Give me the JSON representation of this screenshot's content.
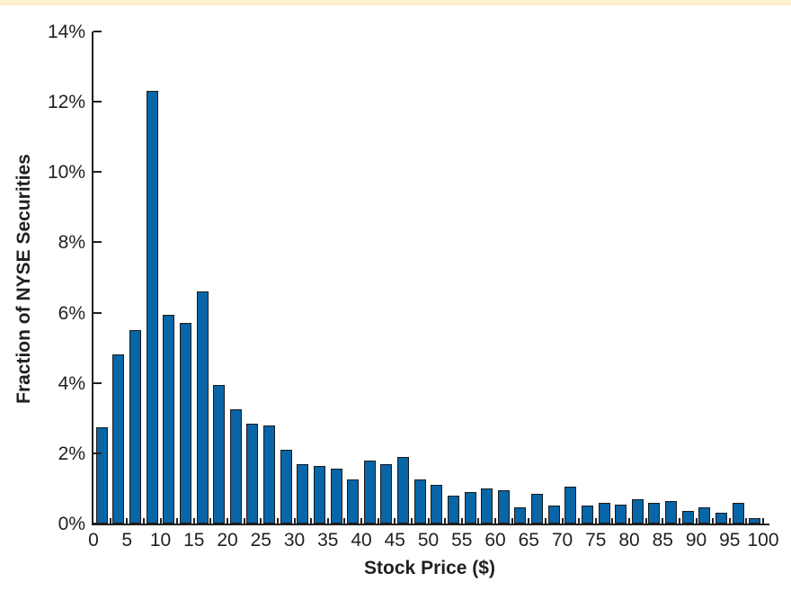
{
  "page": {
    "top_band_color": "#fcf0cd",
    "background_color": "#ffffff"
  },
  "chart_data": {
    "type": "bar",
    "title": "",
    "xlabel": "Stock Price ($)",
    "ylabel": "Fraction of NYSE Securities",
    "bin_start": 0,
    "bin_width": 2.5,
    "values_percent": [
      2.75,
      4.8,
      5.5,
      12.3,
      5.95,
      5.7,
      6.6,
      3.95,
      3.25,
      2.85,
      2.8,
      2.1,
      1.7,
      1.65,
      1.55,
      1.25,
      1.8,
      1.7,
      1.9,
      1.25,
      1.1,
      0.8,
      0.9,
      1.0,
      0.95,
      0.45,
      0.85,
      0.5,
      1.05,
      0.5,
      0.6,
      0.55,
      0.7,
      0.6,
      0.65,
      0.35,
      0.45,
      0.3,
      0.6,
      0.15
    ],
    "bin_ranges": [
      "0-2.5",
      "2.5-5",
      "5-7.5",
      "7.5-10",
      "10-12.5",
      "12.5-15",
      "15-17.5",
      "17.5-20",
      "20-22.5",
      "22.5-25",
      "25-27.5",
      "27.5-30",
      "30-32.5",
      "32.5-35",
      "35-37.5",
      "37.5-40",
      "40-42.5",
      "42.5-45",
      "45-47.5",
      "47.5-50",
      "50-52.5",
      "52.5-55",
      "55-57.5",
      "57.5-60",
      "60-62.5",
      "62.5-65",
      "65-67.5",
      "67.5-70",
      "70-72.5",
      "72.5-75",
      "75-77.5",
      "77.5-80",
      "80-82.5",
      "82.5-85",
      "85-87.5",
      "87.5-90",
      "90-92.5",
      "92.5-95",
      "95-97.5",
      "97.5-100"
    ],
    "x_tick_labels": [
      "0",
      "5",
      "10",
      "15",
      "20",
      "25",
      "30",
      "35",
      "40",
      "45",
      "50",
      "55",
      "60",
      "65",
      "70",
      "75",
      "80",
      "85",
      "90",
      "95",
      "100"
    ],
    "x_tick_step": 5,
    "x_minor_tick_step": 2.5,
    "y_tick_labels": [
      "0%",
      "2%",
      "4%",
      "6%",
      "8%",
      "10%",
      "12%",
      "14%"
    ],
    "y_tick_step_percent": 2,
    "xlim": [
      0,
      100
    ],
    "ylim_percent": [
      0,
      14
    ],
    "grid": false,
    "legend": null,
    "colors": {
      "bar_fill": "#0866a8",
      "bar_outline": "#1a1a1a",
      "axis": "#231f20",
      "text": "#231f20"
    }
  }
}
